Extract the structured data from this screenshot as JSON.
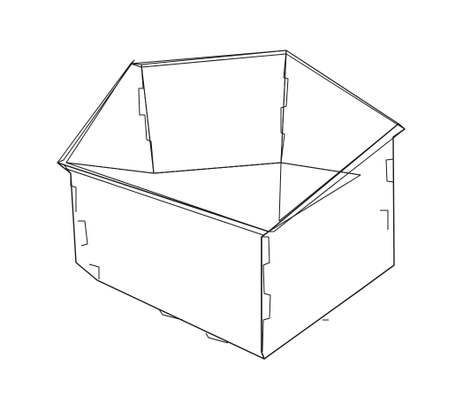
{
  "colors": {
    "background": "#ffffff",
    "wood_face": "#f9ecc6",
    "wood_inner": "#f7e9c1",
    "wood_edge": "#f1e0b3",
    "line": "#1b1b1b"
  }
}
